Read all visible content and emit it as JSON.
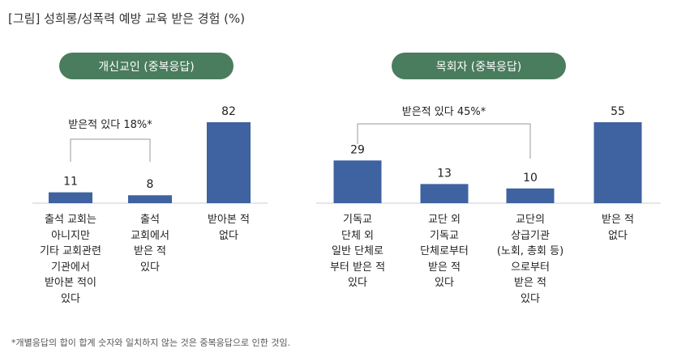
{
  "title": "[그림] 성희롱/성폭력 예방 교육 받은 경험 (%)",
  "footnote": "*개별응답의 합이 합계 숫자와 일치하지 않는 것은 중복응답으로 인한 것임.",
  "colors": {
    "bar": "#3f62a0",
    "pill": "#4a7c5e",
    "bracket": "#999999"
  },
  "chart_data": [
    {
      "type": "bar",
      "title": "개신교인 (중복응답)",
      "categories": [
        "출석 교회는\n아니지만\n기타 교회관련\n기관에서\n받아본 적이\n있다",
        "출석\n교회에서\n받은 적\n있다",
        "받아본 적\n없다"
      ],
      "values": [
        11,
        8,
        82
      ],
      "annotation": "받은적 있다 18%*",
      "ylabel": "",
      "xlabel": ""
    },
    {
      "type": "bar",
      "title": "목회자 (중복응답)",
      "categories": [
        "기독교\n단체 외\n일반 단체로\n부터 받은 적\n있다",
        "교단 외\n기독교\n단체로부터\n받은 적\n있다",
        "교단의\n상급기관\n(노회, 총회 등)\n으로부터\n받은 적\n있다",
        "받은 적\n없다"
      ],
      "values": [
        29,
        13,
        10,
        55
      ],
      "annotation": "받은적 있다 45%*",
      "ylabel": "",
      "xlabel": ""
    }
  ]
}
